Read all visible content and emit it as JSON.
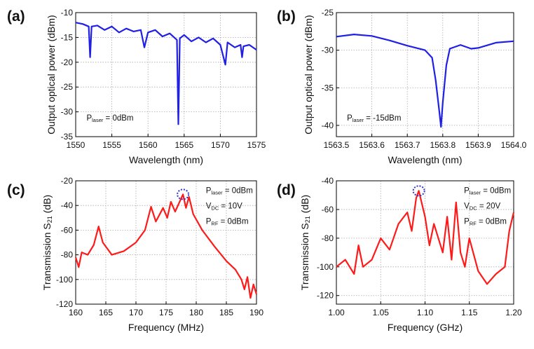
{
  "chart_data": [
    {
      "type": "line",
      "panel_label": "(a)",
      "xlabel": "Wavelength (nm)",
      "ylabel": [
        {
          "text": "Output optical power (dBm)"
        }
      ],
      "x": [
        1550,
        1551,
        1551.8,
        1552,
        1552.2,
        1553,
        1554,
        1555,
        1556,
        1557,
        1558,
        1559,
        1559.5,
        1560,
        1561,
        1562,
        1563,
        1564,
        1564.2,
        1564.4,
        1565,
        1566,
        1567,
        1568,
        1569,
        1570,
        1570.7,
        1571,
        1572,
        1572.8,
        1573,
        1573.2,
        1574,
        1575
      ],
      "values": [
        -12,
        -12.3,
        -12.8,
        -19,
        -12.8,
        -12.6,
        -13.5,
        -12.8,
        -14,
        -13.2,
        -13.8,
        -13.5,
        -17,
        -14,
        -13.5,
        -14.8,
        -14.2,
        -15.5,
        -32.5,
        -15.2,
        -14.5,
        -15.8,
        -15,
        -16,
        -15.2,
        -16.5,
        -20.5,
        -16,
        -17,
        -16.5,
        -19,
        -16.8,
        -16.5,
        -17.5
      ],
      "color": "#1f1fe6",
      "xlim": [
        1550,
        1575
      ],
      "ylim": [
        -35,
        -10
      ],
      "xticks": [
        1550,
        1555,
        1560,
        1565,
        1570,
        1575
      ],
      "yticks": [
        -35,
        -30,
        -25,
        -20,
        -15,
        -10
      ],
      "grid": true,
      "annotations": [
        [
          {
            "text": "P"
          },
          {
            "text": "laser",
            "sub": true
          },
          {
            "text": " = 0dBm"
          }
        ]
      ]
    },
    {
      "type": "line",
      "panel_label": "(b)",
      "xlabel": "Wavelength (nm)",
      "ylabel": [
        {
          "text": "Output optical power (dBm)"
        }
      ],
      "x": [
        1563.5,
        1563.55,
        1563.6,
        1563.65,
        1563.7,
        1563.75,
        1563.77,
        1563.78,
        1563.79,
        1563.795,
        1563.8,
        1563.81,
        1563.82,
        1563.85,
        1563.88,
        1563.9,
        1563.95,
        1564.0
      ],
      "values": [
        -28.2,
        -27.9,
        -28.1,
        -28.7,
        -29.4,
        -30,
        -31,
        -34,
        -38,
        -40.2,
        -37,
        -32,
        -29.8,
        -29.3,
        -29.8,
        -29.7,
        -29,
        -28.8
      ],
      "color": "#1f1fe6",
      "xlim": [
        1563.5,
        1564.0
      ],
      "ylim": [
        -41.5,
        -25
      ],
      "xticks": [
        1563.5,
        1563.6,
        1563.7,
        1563.8,
        1563.9,
        {
          "value": 1564.0,
          "label": "1564.0"
        }
      ],
      "yticks": [
        -40,
        -35,
        -30,
        -25
      ],
      "grid": true,
      "annotations": [
        [
          {
            "text": "P"
          },
          {
            "text": "laser",
            "sub": true
          },
          {
            "text": " = -15dBm"
          }
        ]
      ]
    },
    {
      "type": "line",
      "panel_label": "(c)",
      "xlabel": "Frequency (MHz)",
      "ylabel": [
        {
          "text": "Transmission S"
        },
        {
          "text": "21",
          "sub": true
        },
        {
          "text": " (dB)"
        }
      ],
      "x": [
        160,
        160.5,
        161,
        162,
        163,
        163.8,
        164.5,
        166,
        168,
        170,
        171.5,
        172.5,
        173.3,
        174.5,
        175.2,
        175.8,
        176.5,
        177.8,
        178.3,
        178.8,
        179.5,
        181,
        183,
        185,
        186.5,
        187.5,
        188,
        188.5,
        189,
        189.5,
        190
      ],
      "values": [
        -82,
        -90,
        -78,
        -80,
        -72,
        -57,
        -70,
        -80,
        -77,
        -70,
        -60,
        -41,
        -53,
        -42,
        -50,
        -37,
        -45,
        -31,
        -42,
        -33,
        -47,
        -60,
        -73,
        -85,
        -92,
        -100,
        -108,
        -98,
        -115,
        -104,
        -112
      ],
      "color": "#ff1a1a",
      "xlim": [
        160,
        190
      ],
      "ylim": [
        -120,
        -20
      ],
      "xticks": [
        160,
        165,
        170,
        175,
        180,
        185,
        190
      ],
      "yticks": [
        -120,
        -100,
        -80,
        -60,
        -40,
        -20
      ],
      "grid": true,
      "highlight": {
        "x": 177.8,
        "y": -31,
        "color": "#3333cc"
      },
      "annotations": [
        [
          {
            "text": "P"
          },
          {
            "text": "laser",
            "sub": true
          },
          {
            "text": " = 0dBm"
          }
        ],
        [
          {
            "text": "V"
          },
          {
            "text": "DC",
            "sub": true
          },
          {
            "text": " = 10V"
          }
        ],
        [
          {
            "text": "P"
          },
          {
            "text": "RF",
            "sub": true
          },
          {
            "text": " = 0dBm"
          }
        ]
      ]
    },
    {
      "type": "line",
      "panel_label": "(d)",
      "xlabel": "Frequency (GHz)",
      "ylabel": [
        {
          "text": "Transmission S"
        },
        {
          "text": "21",
          "sub": true
        },
        {
          "text": " (dB)"
        }
      ],
      "x": [
        1.0,
        1.01,
        1.02,
        1.025,
        1.03,
        1.04,
        1.05,
        1.06,
        1.07,
        1.08,
        1.085,
        1.09,
        1.093,
        1.1,
        1.105,
        1.11,
        1.12,
        1.125,
        1.13,
        1.135,
        1.14,
        1.145,
        1.15,
        1.16,
        1.17,
        1.18,
        1.19,
        1.195,
        1.2
      ],
      "values": [
        -100,
        -95,
        -105,
        -85,
        -100,
        -95,
        -80,
        -88,
        -70,
        -62,
        -75,
        -52,
        -47,
        -65,
        -85,
        -70,
        -90,
        -65,
        -95,
        -55,
        -90,
        -100,
        -80,
        -103,
        -112,
        -105,
        -100,
        -75,
        -62
      ],
      "color": "#ff1a1a",
      "xlim": [
        1.0,
        1.2
      ],
      "ylim": [
        -126,
        -40
      ],
      "xticks": [
        {
          "value": 1.0,
          "label": "1.00"
        },
        1.05,
        {
          "value": 1.1,
          "label": "1.10"
        },
        1.15,
        {
          "value": 1.2,
          "label": "1.20"
        }
      ],
      "yticks": [
        -120,
        -100,
        -80,
        -60,
        -40
      ],
      "grid": true,
      "highlight": {
        "x": 1.093,
        "y": -47,
        "color": "#3333cc"
      },
      "annotations": [
        [
          {
            "text": "P"
          },
          {
            "text": "laser",
            "sub": true
          },
          {
            "text": " = 0dBm"
          }
        ],
        [
          {
            "text": "V"
          },
          {
            "text": "DC",
            "sub": true
          },
          {
            "text": " = 20V"
          }
        ],
        [
          {
            "text": "P"
          },
          {
            "text": "RF",
            "sub": true
          },
          {
            "text": " = 0dBm"
          }
        ]
      ]
    }
  ]
}
